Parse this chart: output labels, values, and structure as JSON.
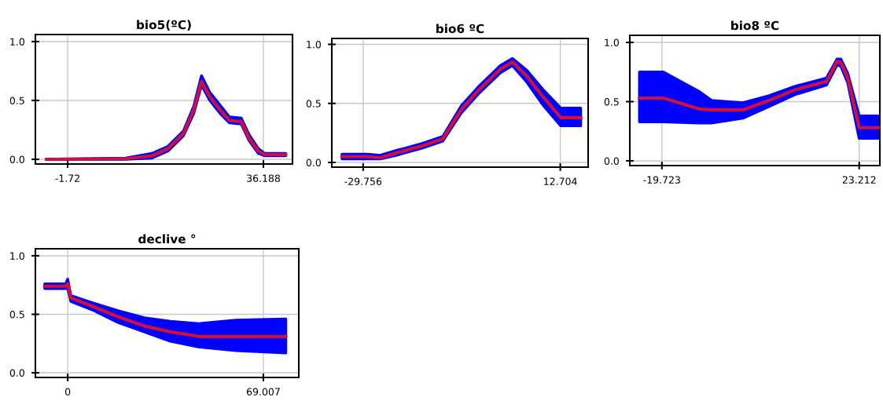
{
  "chart_data": [
    {
      "type": "line",
      "title": "bio5(ºC)",
      "grid": true,
      "xlim": [
        -7.96,
        41.82
      ],
      "ylim": [
        -0.04,
        1.06
      ],
      "xticks": [
        -1.72,
        36.188
      ],
      "yticks": [
        {
          "value": 0,
          "label": "0.0"
        },
        {
          "value": 0.5,
          "label": "0.5"
        },
        {
          "value": 1,
          "label": "1.0"
        }
      ],
      "series": [
        {
          "color": "#d0103a",
          "x": [
            -5.8,
            9.5,
            14.6,
            17.7,
            20.7,
            22.7,
            24.2,
            25.8,
            27.8,
            29.6,
            31.9,
            33.4,
            35.2,
            36.4,
            40.5
          ],
          "values": [
            0,
            0.005,
            0.03,
            0.09,
            0.22,
            0.42,
            0.66,
            0.53,
            0.42,
            0.33,
            0.32,
            0.18,
            0.07,
            0.04,
            0.04
          ],
          "lower": [
            0,
            0,
            0.01,
            0.07,
            0.2,
            0.39,
            0.63,
            0.5,
            0.39,
            0.31,
            0.3,
            0.16,
            0.05,
            0.03,
            0.03
          ],
          "upper": [
            0,
            0.01,
            0.05,
            0.11,
            0.24,
            0.45,
            0.71,
            0.57,
            0.46,
            0.36,
            0.35,
            0.21,
            0.09,
            0.05,
            0.05
          ]
        }
      ]
    },
    {
      "type": "line",
      "title": "bio6 ºC",
      "grid": true,
      "xlim": [
        -36.5,
        18.7
      ],
      "ylim": [
        -0.04,
        1.05
      ],
      "xticks": [
        -29.756,
        12.704
      ],
      "yticks": [
        {
          "value": 0,
          "label": "0.0"
        },
        {
          "value": 0.5,
          "label": "0.5"
        },
        {
          "value": 1,
          "label": "1.0"
        }
      ],
      "series": [
        {
          "color": "#d0103a",
          "x": [
            -34.3,
            -28.9,
            -26.1,
            -22.7,
            -17.1,
            -12.6,
            -8.6,
            -4.7,
            -0.2,
            2.4,
            5.5,
            8.9,
            12.8,
            17.1
          ],
          "values": [
            0.05,
            0.05,
            0.04,
            0.08,
            0.14,
            0.2,
            0.45,
            0.62,
            0.79,
            0.85,
            0.73,
            0.56,
            0.38,
            0.38
          ],
          "lower": [
            0.03,
            0.03,
            0.03,
            0.06,
            0.12,
            0.18,
            0.42,
            0.59,
            0.76,
            0.82,
            0.68,
            0.49,
            0.31,
            0.31
          ],
          "upper": [
            0.07,
            0.07,
            0.06,
            0.1,
            0.16,
            0.22,
            0.48,
            0.65,
            0.82,
            0.88,
            0.78,
            0.62,
            0.46,
            0.46
          ]
        }
      ]
    },
    {
      "type": "line",
      "title": "bio8 ºC",
      "grid": true,
      "xlim": [
        -26.7,
        27.7
      ],
      "ylim": [
        -0.04,
        1.06
      ],
      "xticks": [
        -19.723,
        23.212
      ],
      "yticks": [
        {
          "value": 0,
          "label": "0.0"
        },
        {
          "value": 0.5,
          "label": "0.5"
        },
        {
          "value": 1,
          "label": "1.0"
        }
      ],
      "series": [
        {
          "color": "#d0103a",
          "x": [
            -24.6,
            -19.4,
            -11.8,
            -8.9,
            -2.1,
            3.6,
            9.3,
            16.1,
            18.4,
            19.2,
            20.7,
            23.2,
            27.4
          ],
          "values": [
            0.53,
            0.53,
            0.44,
            0.43,
            0.43,
            0.51,
            0.6,
            0.67,
            0.84,
            0.83,
            0.7,
            0.28,
            0.28
          ],
          "lower": [
            0.33,
            0.33,
            0.32,
            0.32,
            0.36,
            0.46,
            0.56,
            0.64,
            0.81,
            0.8,
            0.66,
            0.19,
            0.19
          ],
          "upper": [
            0.75,
            0.75,
            0.59,
            0.51,
            0.49,
            0.55,
            0.63,
            0.7,
            0.86,
            0.86,
            0.74,
            0.38,
            0.38
          ]
        }
      ]
    },
    {
      "type": "line",
      "title": "declive °",
      "grid": true,
      "xlim": [
        -11.4,
        81.5
      ],
      "ylim": [
        -0.04,
        1.06
      ],
      "xticks": [
        0,
        69.007
      ],
      "yticks": [
        {
          "value": 0,
          "label": "0.0"
        },
        {
          "value": 0.5,
          "label": "0.5"
        },
        {
          "value": 1,
          "label": "1.0"
        }
      ],
      "series": [
        {
          "color": "#d0103a",
          "x": [
            -8.1,
            -0.7,
            0,
            1.1,
            8.5,
            17.7,
            27,
            36.2,
            46.4,
            59.3,
            76.9
          ],
          "values": [
            0.74,
            0.74,
            0.76,
            0.64,
            0.57,
            0.48,
            0.4,
            0.35,
            0.31,
            0.31,
            0.31
          ],
          "lower": [
            0.72,
            0.72,
            0.72,
            0.61,
            0.54,
            0.43,
            0.35,
            0.27,
            0.22,
            0.19,
            0.17
          ],
          "upper": [
            0.76,
            0.76,
            0.8,
            0.66,
            0.6,
            0.53,
            0.47,
            0.44,
            0.42,
            0.45,
            0.46
          ]
        }
      ]
    }
  ]
}
